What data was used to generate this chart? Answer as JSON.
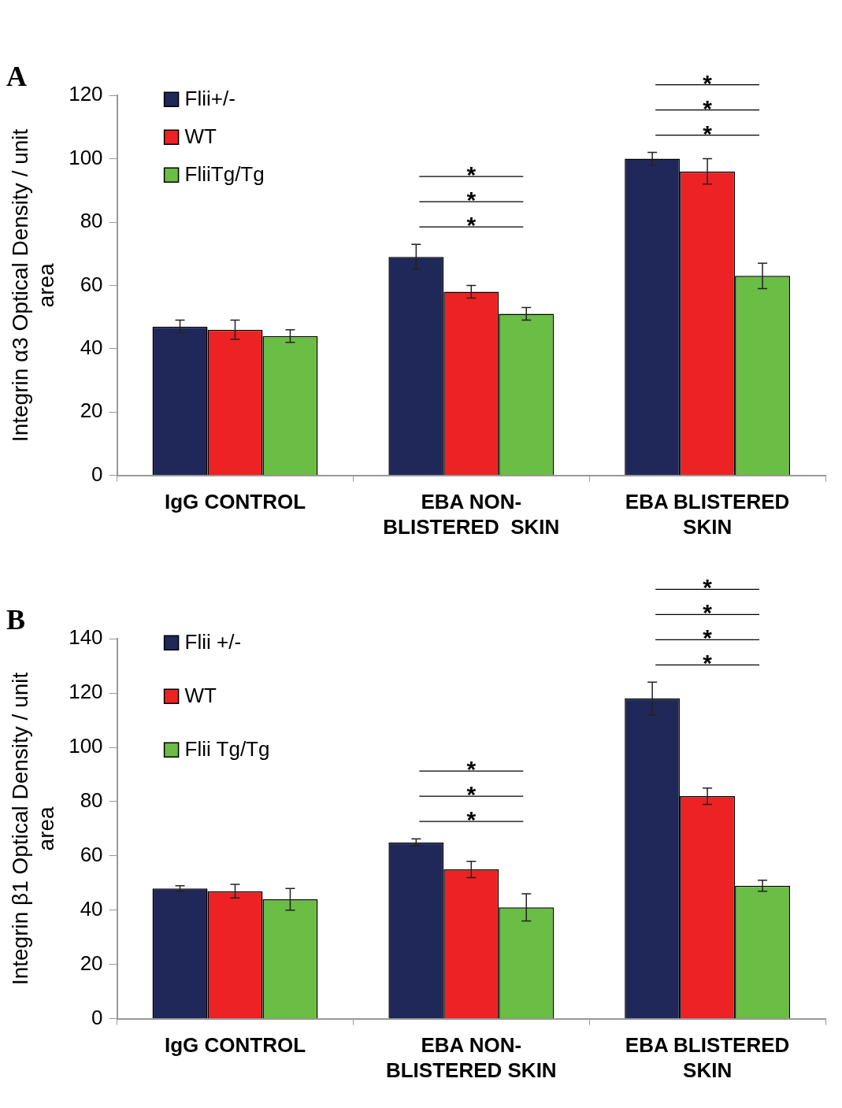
{
  "chart_data": [
    {
      "type": "bar",
      "title": "A",
      "ylabel": "Integrin α3 Optical Density / unit area",
      "categories": [
        "IgG CONTROL",
        "EBA NON-BLISTERED  SKIN",
        "EBA BLISTERED SKIN"
      ],
      "series": [
        {
          "name": "Flii+/-",
          "color": "#1f2859",
          "values": [
            47,
            69,
            100
          ],
          "errors": [
            2,
            4,
            2
          ]
        },
        {
          "name": "WT",
          "color": "#ed2224",
          "values": [
            46,
            58,
            96
          ],
          "errors": [
            3,
            2,
            4
          ]
        },
        {
          "name": "FliiTg/Tg",
          "color": "#6abd45",
          "values": [
            44,
            51,
            63
          ],
          "errors": [
            2,
            2,
            4
          ]
        }
      ],
      "ylim": [
        0,
        120
      ],
      "yticks": [
        0,
        20,
        40,
        60,
        80,
        100,
        120
      ],
      "grid": false,
      "legend": "top left",
      "annotations": [
        "*",
        "*",
        "*",
        "*",
        "*",
        "*"
      ]
    },
    {
      "type": "bar",
      "title": "B",
      "ylabel": "Integrin β1 Optical Density / unit area",
      "categories": [
        "IgG CONTROL",
        "EBA NON-BLISTERED SKIN",
        "EBA BLISTERED SKIN"
      ],
      "series": [
        {
          "name": "Flii +/-",
          "color": "#1f2859",
          "values": [
            48,
            65,
            118
          ],
          "errors": [
            1,
            1.3,
            6
          ]
        },
        {
          "name": "WT",
          "color": "#ed2224",
          "values": [
            47,
            55,
            82
          ],
          "errors": [
            2.5,
            3,
            3
          ]
        },
        {
          "name": "Flii Tg/Tg",
          "color": "#6abd45",
          "values": [
            44,
            41,
            49
          ],
          "errors": [
            4,
            5,
            2
          ]
        }
      ],
      "ylim": [
        0,
        140
      ],
      "yticks": [
        0,
        20,
        40,
        60,
        80,
        100,
        120,
        140
      ],
      "grid": false,
      "legend": "top left",
      "annotations": [
        "*",
        "*",
        "*",
        "*",
        "*",
        "*",
        "*"
      ]
    }
  ]
}
